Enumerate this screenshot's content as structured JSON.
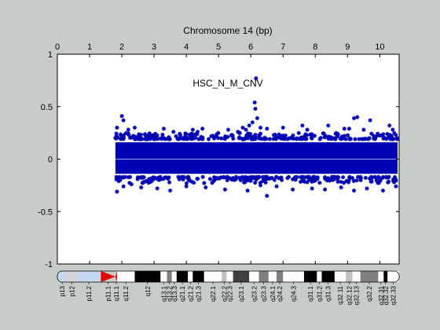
{
  "chart_data": {
    "type": "scatter",
    "title": "Chromosome 14 (bp)",
    "annotation": "HSC_N_M_CNV",
    "xlim": [
      0,
      10.6
    ],
    "ylim": [
      -1,
      1
    ],
    "x_ticks": [
      0,
      1,
      2,
      3,
      4,
      5,
      6,
      7,
      8,
      9,
      10
    ],
    "y_ticks": [
      -1,
      -0.5,
      0,
      0.5,
      1
    ],
    "y_tick_labels": [
      "-1",
      "-0.5",
      "0",
      "0.5",
      "1"
    ],
    "x_axis_position": "top",
    "grid": false,
    "series": [
      {
        "color": "#0000b4",
        "marker": "asterisk",
        "x_range": [
          1.8,
          10.55
        ],
        "core_band": [
          -0.2,
          0.22
        ],
        "points": [
          [
            2.0,
            0.41
          ],
          [
            2.05,
            0.37
          ],
          [
            1.85,
            0.3
          ],
          [
            2.2,
            0.28
          ],
          [
            2.4,
            0.3
          ],
          [
            3.3,
            0.29
          ],
          [
            3.6,
            0.26
          ],
          [
            4.2,
            0.28
          ],
          [
            4.35,
            0.26
          ],
          [
            4.5,
            0.29
          ],
          [
            5.3,
            0.28
          ],
          [
            5.6,
            0.26
          ],
          [
            5.75,
            0.3
          ],
          [
            5.85,
            0.28
          ],
          [
            5.95,
            0.32
          ],
          [
            6.05,
            0.35
          ],
          [
            6.12,
            0.54
          ],
          [
            6.14,
            0.48
          ],
          [
            6.16,
            0.77
          ],
          [
            6.2,
            0.39
          ],
          [
            6.3,
            0.3
          ],
          [
            6.5,
            0.29
          ],
          [
            7.0,
            0.3
          ],
          [
            7.6,
            0.32
          ],
          [
            7.75,
            0.28
          ],
          [
            8.4,
            0.32
          ],
          [
            8.9,
            0.29
          ],
          [
            9.05,
            0.29
          ],
          [
            9.2,
            0.39
          ],
          [
            9.3,
            0.4
          ],
          [
            9.5,
            0.28
          ],
          [
            9.7,
            0.37
          ],
          [
            10.3,
            0.32
          ],
          [
            10.4,
            0.28
          ],
          [
            1.85,
            -0.31
          ],
          [
            2.05,
            -0.26
          ],
          [
            2.3,
            -0.24
          ],
          [
            2.6,
            -0.27
          ],
          [
            3.1,
            -0.28
          ],
          [
            3.5,
            -0.3
          ],
          [
            4.0,
            -0.26
          ],
          [
            4.6,
            -0.27
          ],
          [
            5.2,
            -0.29
          ],
          [
            5.9,
            -0.3
          ],
          [
            6.3,
            -0.25
          ],
          [
            6.5,
            -0.35
          ],
          [
            6.8,
            -0.26
          ],
          [
            7.3,
            -0.29
          ],
          [
            7.9,
            -0.28
          ],
          [
            8.3,
            -0.29
          ],
          [
            8.8,
            -0.27
          ],
          [
            9.2,
            -0.3
          ],
          [
            9.6,
            -0.28
          ],
          [
            10.1,
            -0.3
          ],
          [
            10.5,
            -0.26
          ]
        ]
      }
    ]
  },
  "ideogram": {
    "bands": [
      {
        "label": "p13",
        "start": 0.0,
        "end": 0.3,
        "color": "#c6d9f0"
      },
      {
        "label": "p12",
        "start": 0.3,
        "end": 0.6,
        "color": "#d4d4d4"
      },
      {
        "label": "p11.2",
        "start": 0.6,
        "end": 1.35,
        "color": "#c6d9f0"
      },
      {
        "label": "p11.1",
        "start": 1.35,
        "end": 1.8,
        "color": "#e00000"
      },
      {
        "label": "q11.1",
        "start": 1.8,
        "end": 1.85,
        "color": "#e00000"
      },
      {
        "label": "q11.2",
        "start": 1.85,
        "end": 2.4,
        "color": "#ffffff"
      },
      {
        "label": "q12",
        "start": 2.4,
        "end": 3.2,
        "color": "#000000"
      },
      {
        "label": "q13.1",
        "start": 3.2,
        "end": 3.4,
        "color": "#ffffff"
      },
      {
        "label": "q13.2",
        "start": 3.4,
        "end": 3.55,
        "color": "#808080"
      },
      {
        "label": "q13.3",
        "start": 3.55,
        "end": 3.7,
        "color": "#ffffff"
      },
      {
        "label": "q21.1",
        "start": 3.7,
        "end": 4.05,
        "color": "#000000"
      },
      {
        "label": "q21.2",
        "start": 4.05,
        "end": 4.2,
        "color": "#ffffff"
      },
      {
        "label": "q21.3",
        "start": 4.2,
        "end": 4.55,
        "color": "#000000"
      },
      {
        "label": "q22.1",
        "start": 4.55,
        "end": 5.1,
        "color": "#ffffff"
      },
      {
        "label": "q22.2",
        "start": 5.1,
        "end": 5.25,
        "color": "#c0c0c0"
      },
      {
        "label": "q22.3",
        "start": 5.25,
        "end": 5.45,
        "color": "#ffffff"
      },
      {
        "label": "q23.1",
        "start": 5.45,
        "end": 5.95,
        "color": "#404040"
      },
      {
        "label": "q23.2",
        "start": 5.95,
        "end": 6.25,
        "color": "#ffffff"
      },
      {
        "label": "q23.3",
        "start": 6.25,
        "end": 6.55,
        "color": "#808080"
      },
      {
        "label": "q24.1",
        "start": 6.55,
        "end": 6.8,
        "color": "#ffffff"
      },
      {
        "label": "q24.2",
        "start": 6.8,
        "end": 7.0,
        "color": "#808080"
      },
      {
        "label": "q24.3",
        "start": 7.0,
        "end": 7.65,
        "color": "#ffffff"
      },
      {
        "label": "q31.1",
        "start": 7.65,
        "end": 8.05,
        "color": "#000000"
      },
      {
        "label": "q31.2",
        "start": 8.05,
        "end": 8.2,
        "color": "#ffffff"
      },
      {
        "label": "q31.3",
        "start": 8.2,
        "end": 8.6,
        "color": "#000000"
      },
      {
        "label": "q32.11",
        "start": 8.6,
        "end": 8.95,
        "color": "#ffffff"
      },
      {
        "label": "q32.12",
        "start": 8.95,
        "end": 9.15,
        "color": "#c0c0c0"
      },
      {
        "label": "q32.13",
        "start": 9.15,
        "end": 9.4,
        "color": "#ffffff"
      },
      {
        "label": "q32.2",
        "start": 9.4,
        "end": 9.95,
        "color": "#808080"
      },
      {
        "label": "q32.31",
        "start": 9.95,
        "end": 10.12,
        "color": "#ffffff"
      },
      {
        "label": "q32.32",
        "start": 10.12,
        "end": 10.24,
        "color": "#000000"
      },
      {
        "label": "q32.33",
        "start": 10.24,
        "end": 10.6,
        "color": "#ffffff"
      }
    ]
  }
}
